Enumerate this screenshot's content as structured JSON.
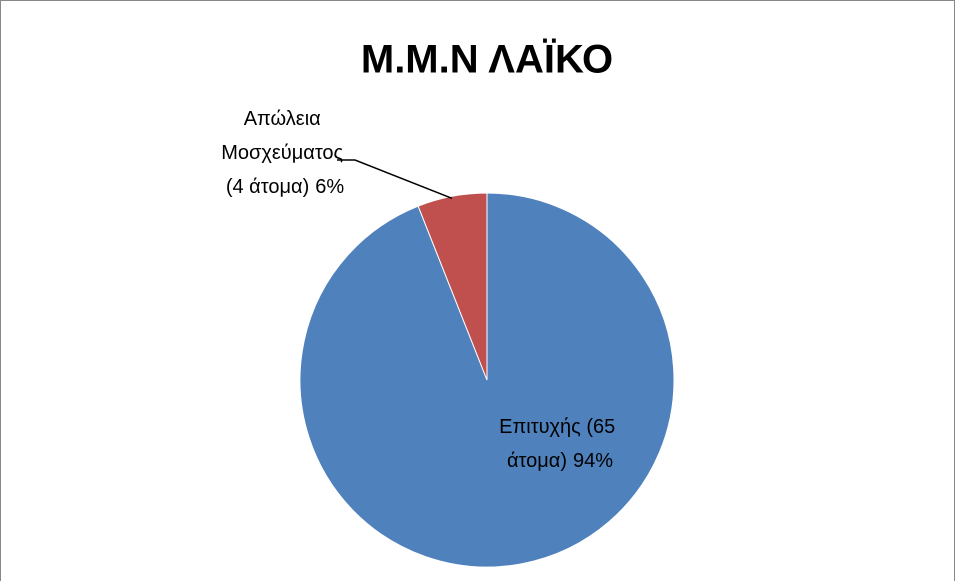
{
  "chart_data": {
    "type": "pie",
    "title": "Μ.Μ.Ν ΛΑΪΚΟ",
    "categories": [
      "Επιτυχής (65 άτομα)",
      "Απώλεια Μοσχεύματος (4 άτομα)"
    ],
    "values": [
      94,
      6
    ],
    "value_labels": [
      "94%",
      "6%"
    ],
    "colors": [
      "#4f81bd",
      "#c0504d"
    ]
  }
}
